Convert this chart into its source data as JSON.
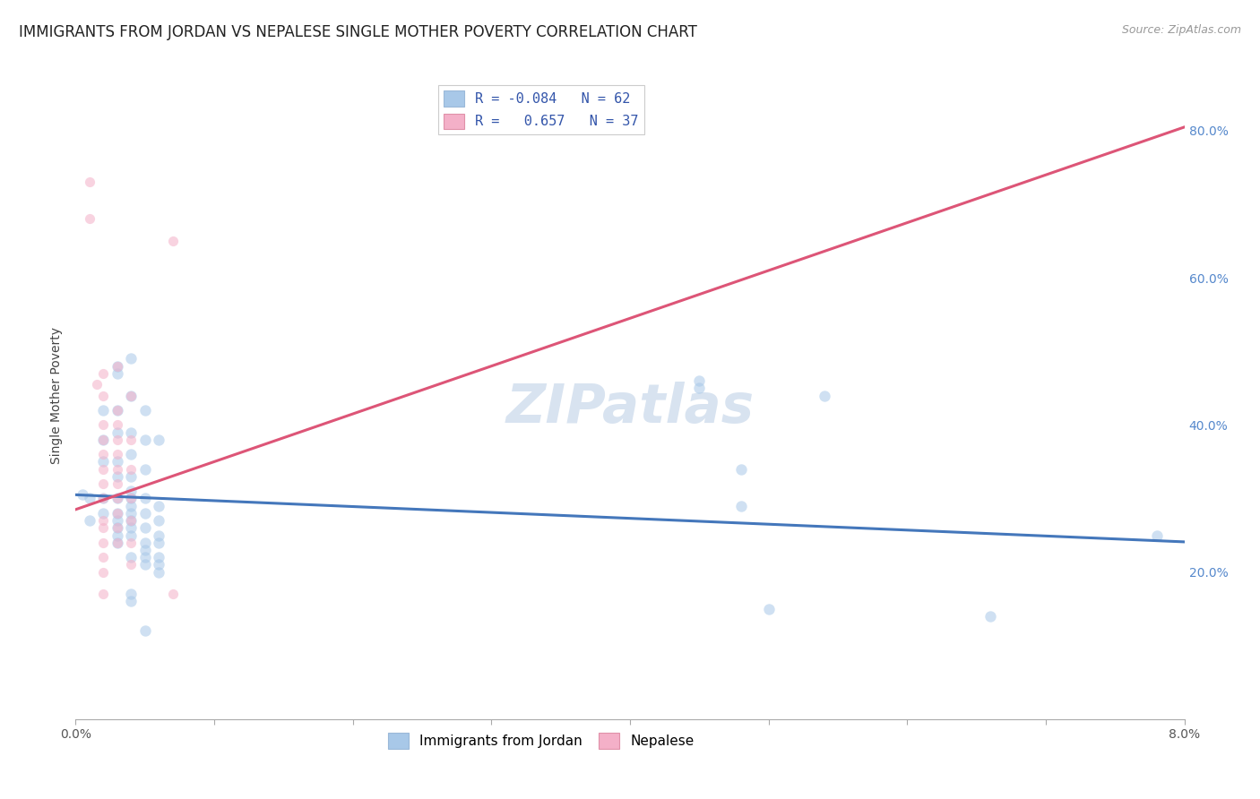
{
  "title": "IMMIGRANTS FROM JORDAN VS NEPALESE SINGLE MOTHER POVERTY CORRELATION CHART",
  "source": "Source: ZipAtlas.com",
  "ylabel": "Single Mother Poverty",
  "xlim": [
    0.0,
    0.08
  ],
  "ylim": [
    0.0,
    0.88
  ],
  "ylabel_ticks_right": [
    0.2,
    0.4,
    0.6,
    0.8
  ],
  "ylabel_tick_labels_right": [
    "20.0%",
    "40.0%",
    "60.0%",
    "80.0%"
  ],
  "xtick_positions": [
    0.0,
    0.01,
    0.02,
    0.03,
    0.04,
    0.05,
    0.06,
    0.07,
    0.08
  ],
  "xtick_labels_shown": {
    "0.0": "0.0%",
    "0.08": "8.0%"
  },
  "legend_label_blue": "R = -0.084   N = 62",
  "legend_label_pink": "R =   0.657   N = 37",
  "watermark": "ZIPatlas",
  "blue_color": "#a8c8e8",
  "blue_edge_color": "#6699cc",
  "pink_color": "#f4b0c8",
  "pink_edge_color": "#e06080",
  "blue_line_color": "#4477bb",
  "pink_line_color": "#dd5577",
  "blue_intercept": 0.305,
  "blue_slope": -0.8,
  "pink_intercept": 0.285,
  "pink_slope": 6.5,
  "grid_color": "#c8d4e4",
  "bg_color": "#ffffff",
  "title_fontsize": 12,
  "axis_label_fontsize": 10,
  "tick_fontsize": 10,
  "watermark_fontsize": 44,
  "watermark_color": "#b8cce4",
  "watermark_alpha": 0.55,
  "dot_size_blue": 80,
  "dot_size_pink": 65,
  "dot_alpha": 0.55,
  "blue_points": [
    [
      0.0005,
      0.305
    ],
    [
      0.001,
      0.3
    ],
    [
      0.001,
      0.27
    ],
    [
      0.002,
      0.42
    ],
    [
      0.002,
      0.38
    ],
    [
      0.002,
      0.3
    ],
    [
      0.002,
      0.28
    ],
    [
      0.002,
      0.35
    ],
    [
      0.003,
      0.48
    ],
    [
      0.003,
      0.47
    ],
    [
      0.003,
      0.42
    ],
    [
      0.003,
      0.39
    ],
    [
      0.003,
      0.35
    ],
    [
      0.003,
      0.33
    ],
    [
      0.003,
      0.3
    ],
    [
      0.003,
      0.28
    ],
    [
      0.003,
      0.27
    ],
    [
      0.003,
      0.26
    ],
    [
      0.003,
      0.25
    ],
    [
      0.003,
      0.24
    ],
    [
      0.004,
      0.49
    ],
    [
      0.004,
      0.44
    ],
    [
      0.004,
      0.39
    ],
    [
      0.004,
      0.36
    ],
    [
      0.004,
      0.33
    ],
    [
      0.004,
      0.31
    ],
    [
      0.004,
      0.3
    ],
    [
      0.004,
      0.29
    ],
    [
      0.004,
      0.28
    ],
    [
      0.004,
      0.27
    ],
    [
      0.004,
      0.26
    ],
    [
      0.004,
      0.25
    ],
    [
      0.004,
      0.22
    ],
    [
      0.004,
      0.17
    ],
    [
      0.004,
      0.16
    ],
    [
      0.005,
      0.42
    ],
    [
      0.005,
      0.38
    ],
    [
      0.005,
      0.34
    ],
    [
      0.005,
      0.3
    ],
    [
      0.005,
      0.28
    ],
    [
      0.005,
      0.26
    ],
    [
      0.005,
      0.24
    ],
    [
      0.005,
      0.23
    ],
    [
      0.005,
      0.22
    ],
    [
      0.005,
      0.21
    ],
    [
      0.005,
      0.12
    ],
    [
      0.006,
      0.38
    ],
    [
      0.006,
      0.29
    ],
    [
      0.006,
      0.27
    ],
    [
      0.006,
      0.25
    ],
    [
      0.006,
      0.24
    ],
    [
      0.006,
      0.22
    ],
    [
      0.006,
      0.21
    ],
    [
      0.006,
      0.2
    ],
    [
      0.045,
      0.46
    ],
    [
      0.045,
      0.45
    ],
    [
      0.048,
      0.34
    ],
    [
      0.048,
      0.29
    ],
    [
      0.05,
      0.15
    ],
    [
      0.054,
      0.44
    ],
    [
      0.066,
      0.14
    ],
    [
      0.078,
      0.25
    ]
  ],
  "pink_points": [
    [
      0.001,
      0.73
    ],
    [
      0.001,
      0.68
    ],
    [
      0.0015,
      0.455
    ],
    [
      0.002,
      0.47
    ],
    [
      0.002,
      0.44
    ],
    [
      0.002,
      0.4
    ],
    [
      0.002,
      0.38
    ],
    [
      0.002,
      0.36
    ],
    [
      0.002,
      0.34
    ],
    [
      0.002,
      0.32
    ],
    [
      0.002,
      0.3
    ],
    [
      0.002,
      0.27
    ],
    [
      0.002,
      0.26
    ],
    [
      0.002,
      0.24
    ],
    [
      0.002,
      0.22
    ],
    [
      0.002,
      0.2
    ],
    [
      0.002,
      0.17
    ],
    [
      0.003,
      0.48
    ],
    [
      0.003,
      0.42
    ],
    [
      0.003,
      0.4
    ],
    [
      0.003,
      0.38
    ],
    [
      0.003,
      0.36
    ],
    [
      0.003,
      0.34
    ],
    [
      0.003,
      0.32
    ],
    [
      0.003,
      0.3
    ],
    [
      0.003,
      0.28
    ],
    [
      0.003,
      0.26
    ],
    [
      0.003,
      0.24
    ],
    [
      0.004,
      0.44
    ],
    [
      0.004,
      0.38
    ],
    [
      0.004,
      0.34
    ],
    [
      0.004,
      0.3
    ],
    [
      0.004,
      0.27
    ],
    [
      0.004,
      0.24
    ],
    [
      0.004,
      0.21
    ],
    [
      0.007,
      0.65
    ],
    [
      0.007,
      0.17
    ]
  ]
}
